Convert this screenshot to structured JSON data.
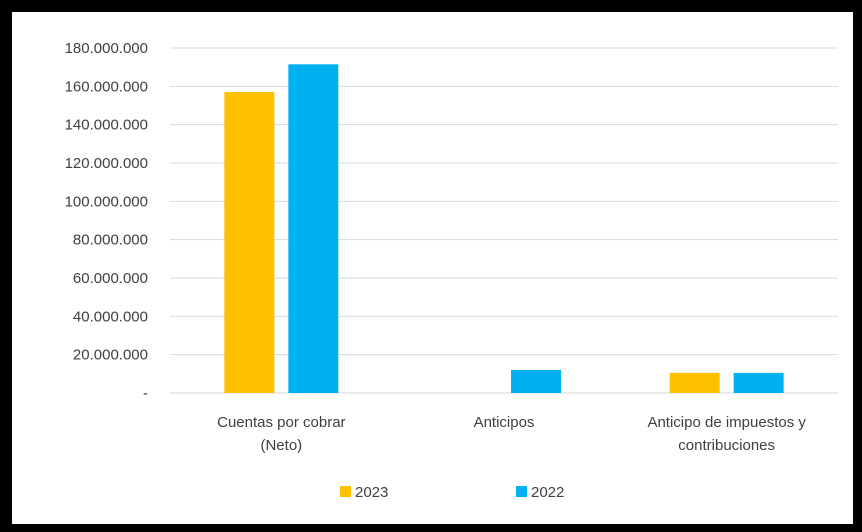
{
  "chart_data": {
    "type": "bar",
    "categories": [
      [
        "Cuentas por cobrar",
        "(Neto)"
      ],
      [
        "Anticipos"
      ],
      [
        "Anticipo de impuestos y",
        "contribuciones"
      ]
    ],
    "series": [
      {
        "name": "2023",
        "color": "#FFC000",
        "values": [
          157000000,
          0,
          10500000
        ]
      },
      {
        "name": "2022",
        "color": "#00B0F0",
        "values": [
          171500000,
          12000000,
          10500000
        ]
      }
    ],
    "ylim": [
      0,
      180000000
    ],
    "yticks": [
      "-",
      "20.000.000",
      "40.000.000",
      "60.000.000",
      "80.000.000",
      "100.000.000",
      "120.000.000",
      "140.000.000",
      "160.000.000",
      "180.000.000"
    ],
    "grid": true,
    "legend": "bottom",
    "colors": {
      "text": "#404040",
      "grid": "#D9D9D9",
      "frame": "#000000"
    }
  }
}
